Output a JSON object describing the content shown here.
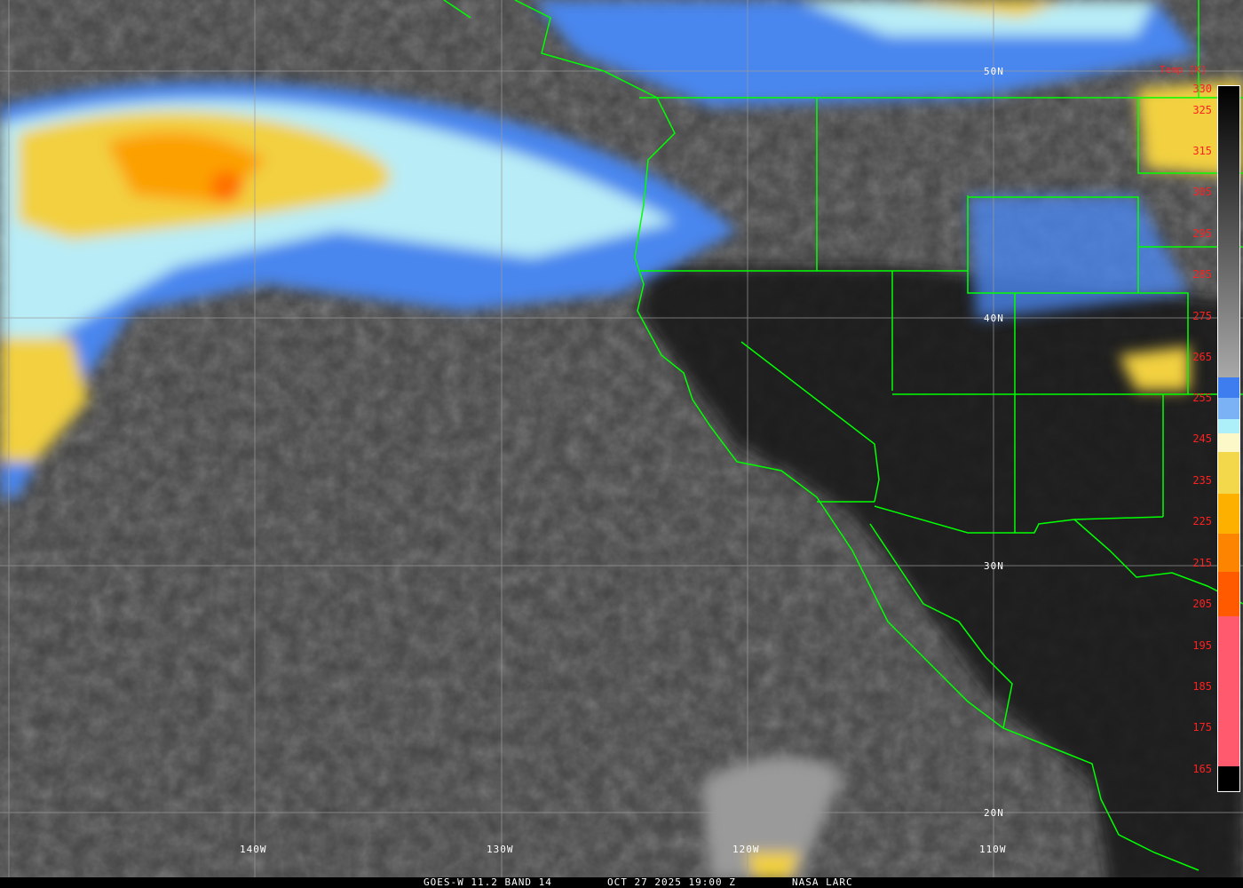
{
  "footer": {
    "satellite": "GOES-W 11.2 BAND 14",
    "datetime": "OCT 27 2025 19:00 Z",
    "credit": "NASA LARC"
  },
  "grid_labels": {
    "lon": [
      "140W",
      "130W",
      "120W",
      "110W"
    ],
    "lat": [
      "50N",
      "40N",
      "30N",
      "20N"
    ]
  },
  "colorbar": {
    "title": "Temp [K]",
    "ticks": [
      "330",
      "325",
      "315",
      "305",
      "295",
      "285",
      "275",
      "265",
      "255",
      "245",
      "235",
      "225",
      "215",
      "205",
      "195",
      "185",
      "175",
      "165"
    ],
    "segments": [
      {
        "from": "#000000",
        "to": "#a8a8a8"
      },
      {
        "color": "#3d7df0"
      },
      {
        "color": "#7ab2f5"
      },
      {
        "color": "#aef0fa"
      },
      {
        "color": "#fdf8c8"
      },
      {
        "color": "#f2d84a"
      },
      {
        "color": "#fdb000"
      },
      {
        "color": "#fd8400"
      },
      {
        "color": "#ff5a00"
      },
      {
        "color": "#ff5a6e"
      }
    ]
  },
  "overlay_color": "#00ff00"
}
